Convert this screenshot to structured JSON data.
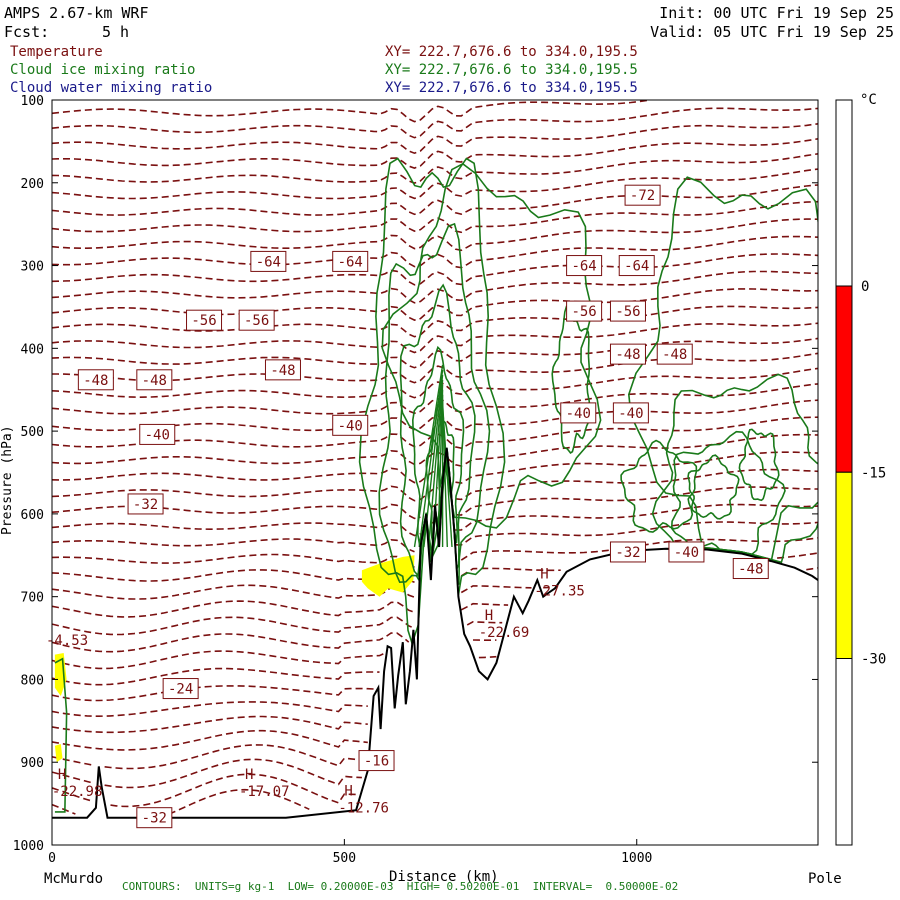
{
  "header": {
    "model": "AMPS 2.67-km WRF",
    "init": "Init: 00 UTC Fri 19 Sep 25",
    "fcst_label": "Fcst:",
    "fcst_value": "5 h",
    "valid": "Valid: 05 UTC Fri 19 Sep 25"
  },
  "legend": [
    {
      "name": "Temperature",
      "xy": "XY= 222.7,676.6 to 334.0,195.5",
      "color": "#7a1010"
    },
    {
      "name": "Cloud ice mixing ratio",
      "xy": "XY= 222.7,676.6 to 334.0,195.5",
      "color": "#1a7a1a"
    },
    {
      "name": "Cloud water mixing ratio",
      "xy": "XY= 222.7,676.6 to 334.0,195.5",
      "color": "#1a1a8a"
    }
  ],
  "footer": "CONTOURS:  UNITS=g kg-1  LOW= 0.20000E-03  HIGH= 0.50200E-01  INTERVAL=  0.50000E-02",
  "chart_data": {
    "type": "cross-section contour",
    "ylabel": "Pressure (hPa)",
    "xlabel": "Distance (km)",
    "ylim": [
      1000,
      100
    ],
    "xlim": [
      0,
      1310
    ],
    "y_ticks": [
      100,
      200,
      300,
      400,
      500,
      600,
      700,
      800,
      900,
      1000
    ],
    "x_ticks": [
      0,
      500,
      1000
    ],
    "x_endpoints": {
      "left": "McMurdo",
      "right": "Pole"
    },
    "colorbar": {
      "unit": "°C",
      "ticks": [
        0,
        -15,
        -30
      ],
      "bands": [
        {
          "from": 0,
          "to": -15,
          "color": "#ff0000"
        },
        {
          "from": -15,
          "to": -30,
          "color": "#ffff00"
        }
      ]
    },
    "temperature_labels": [
      {
        "x": 370,
        "p": 295,
        "v": "-64"
      },
      {
        "x": 510,
        "p": 295,
        "v": "-64"
      },
      {
        "x": 910,
        "p": 300,
        "v": "-64"
      },
      {
        "x": 1000,
        "p": 300,
        "v": "-64"
      },
      {
        "x": 1010,
        "p": 215,
        "v": "-72"
      },
      {
        "x": 260,
        "p": 366,
        "v": "-56"
      },
      {
        "x": 350,
        "p": 366,
        "v": "-56"
      },
      {
        "x": 910,
        "p": 355,
        "v": "-56"
      },
      {
        "x": 985,
        "p": 355,
        "v": "-56"
      },
      {
        "x": 75,
        "p": 438,
        "v": "-48"
      },
      {
        "x": 175,
        "p": 438,
        "v": "-48"
      },
      {
        "x": 395,
        "p": 426,
        "v": "-48"
      },
      {
        "x": 985,
        "p": 407,
        "v": "-48"
      },
      {
        "x": 1065,
        "p": 407,
        "v": "-48"
      },
      {
        "x": 180,
        "p": 504,
        "v": "-40"
      },
      {
        "x": 510,
        "p": 493,
        "v": "-40"
      },
      {
        "x": 900,
        "p": 478,
        "v": "-40"
      },
      {
        "x": 990,
        "p": 478,
        "v": "-40"
      },
      {
        "x": 160,
        "p": 588,
        "v": "-32"
      },
      {
        "x": 985,
        "p": 646,
        "v": "-32"
      },
      {
        "x": 1085,
        "p": 646,
        "v": "-40"
      },
      {
        "x": 1195,
        "p": 666,
        "v": "-48"
      },
      {
        "x": 220,
        "p": 811,
        "v": "-24"
      },
      {
        "x": 555,
        "p": 898,
        "v": "-16"
      },
      {
        "x": 175,
        "p": 967,
        "v": "-32"
      }
    ],
    "extrema": [
      {
        "x": 10,
        "p": 920,
        "label": "H",
        "value": "-22.98"
      },
      {
        "x": 330,
        "p": 920,
        "label": "H",
        "value": "-17.07"
      },
      {
        "x": 500,
        "p": 940,
        "label": "H",
        "value": "-12.76"
      },
      {
        "x": 740,
        "p": 728,
        "label": "H",
        "value": "-22.69"
      },
      {
        "x": 835,
        "p": 678,
        "label": "H",
        "value": "-27.35"
      },
      {
        "x": 0,
        "p": 738,
        "label": "",
        "value": "-4.53"
      }
    ]
  }
}
